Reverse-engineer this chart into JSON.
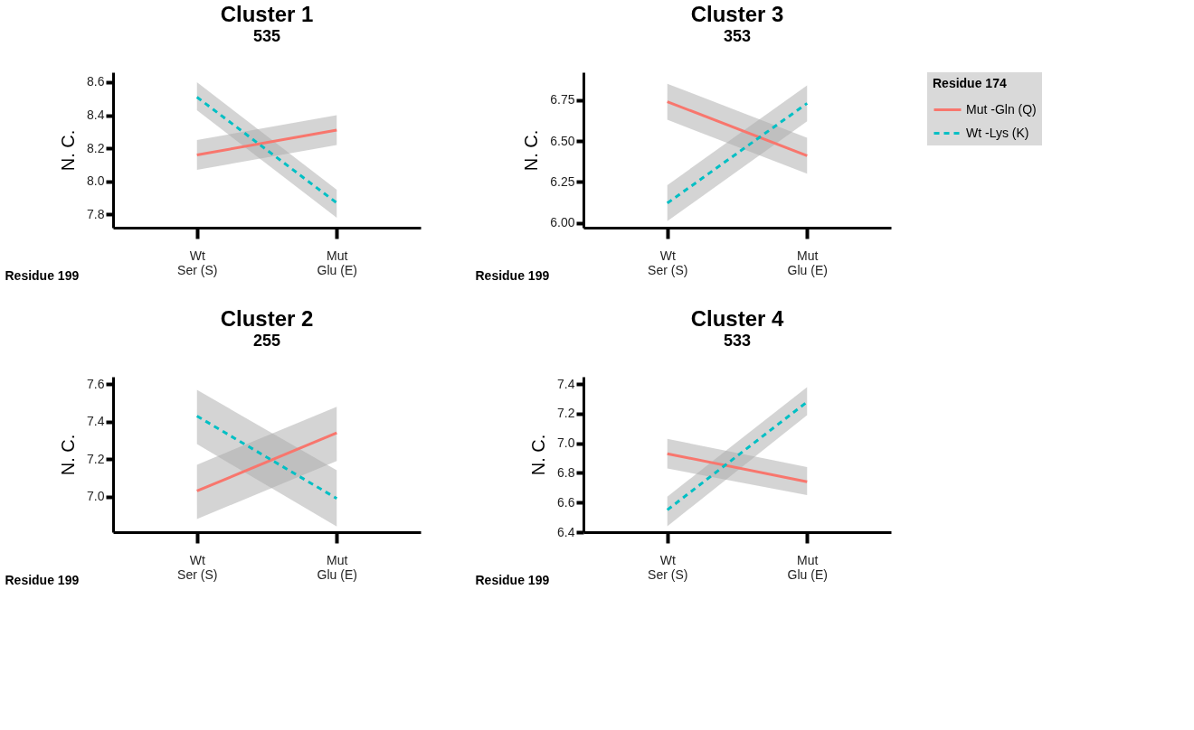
{
  "chart_data": [
    {
      "type": "line",
      "title": "Cluster 1",
      "subtitle": "535",
      "xlabel": "Residue 199",
      "ylabel": "N. C.",
      "categories": [
        "Wt\nSer (S)",
        "Mut\nGlu (E)"
      ],
      "ylim": [
        7.72,
        8.66
      ],
      "yticks": [
        7.8,
        {
          "value": 8,
          "label": "8.0"
        },
        8.2,
        8.4,
        8.6
      ],
      "grid": false,
      "legend": false,
      "marker": "none",
      "series": [
        {
          "color": "#f8766d",
          "line_style": "solid",
          "values": [
            8.16,
            8.31
          ],
          "lower": [
            8.07,
            8.22
          ],
          "upper": [
            8.25,
            8.4
          ]
        },
        {
          "color": "#00bfc4",
          "line_style": "dashed",
          "values": [
            8.51,
            7.87
          ],
          "lower": [
            8.43,
            7.78
          ],
          "upper": [
            8.6,
            7.95
          ]
        }
      ]
    },
    {
      "type": "line",
      "title": "Cluster 3",
      "subtitle": "353",
      "xlabel": "Residue 199",
      "ylabel": "N. C.",
      "legend_title": "Residue 174",
      "categories": [
        "Wt\nSer (S)",
        "Mut\nGlu (E)"
      ],
      "ylim": [
        5.97,
        6.92
      ],
      "yticks": [
        {
          "value": 6,
          "label": "6.00"
        },
        6.25,
        {
          "value": 6.5,
          "label": "6.50"
        },
        6.75
      ],
      "grid": false,
      "legend": "right",
      "marker": "none",
      "series": [
        {
          "name": "Mut -Gln (Q)",
          "color": "#f8766d",
          "line_style": "solid",
          "values": [
            6.74,
            6.41
          ],
          "lower": [
            6.63,
            6.3
          ],
          "upper": [
            6.85,
            6.52
          ]
        },
        {
          "name": "Wt -Lys (K)",
          "color": "#00bfc4",
          "line_style": "dashed",
          "values": [
            6.12,
            6.73
          ],
          "lower": [
            6.01,
            6.62
          ],
          "upper": [
            6.23,
            6.84
          ]
        }
      ]
    },
    {
      "type": "line",
      "title": "Cluster 2",
      "subtitle": "255",
      "xlabel": "Residue 199",
      "ylabel": "N. C.",
      "categories": [
        "Wt\nSer (S)",
        "Mut\nGlu (E)"
      ],
      "ylim": [
        6.81,
        7.64
      ],
      "yticks": [
        {
          "value": 7,
          "label": "7.0"
        },
        7.2,
        7.4,
        7.6
      ],
      "grid": false,
      "legend": false,
      "marker": "none",
      "series": [
        {
          "color": "#f8766d",
          "line_style": "solid",
          "values": [
            7.03,
            7.34
          ],
          "lower": [
            6.88,
            7.19
          ],
          "upper": [
            7.17,
            7.48
          ]
        },
        {
          "color": "#00bfc4",
          "line_style": "dashed",
          "values": [
            7.43,
            6.99
          ],
          "lower": [
            7.28,
            6.84
          ],
          "upper": [
            7.57,
            7.14
          ]
        }
      ]
    },
    {
      "type": "line",
      "title": "Cluster 4",
      "subtitle": "533",
      "xlabel": "Residue 199",
      "ylabel": "N. C.",
      "categories": [
        "Wt\nSer (S)",
        "Mut\nGlu (E)"
      ],
      "ylim": [
        6.4,
        7.45
      ],
      "yticks": [
        6.4,
        6.6,
        6.8,
        {
          "value": 7,
          "label": "7.0"
        },
        7.2,
        7.4
      ],
      "grid": false,
      "legend": false,
      "marker": "none",
      "series": [
        {
          "color": "#f8766d",
          "line_style": "solid",
          "values": [
            6.93,
            6.74
          ],
          "lower": [
            6.83,
            6.65
          ],
          "upper": [
            7.03,
            6.84
          ]
        },
        {
          "color": "#00bfc4",
          "line_style": "dashed",
          "values": [
            6.55,
            7.28
          ],
          "lower": [
            6.44,
            7.19
          ],
          "upper": [
            6.64,
            7.38
          ]
        }
      ]
    }
  ]
}
